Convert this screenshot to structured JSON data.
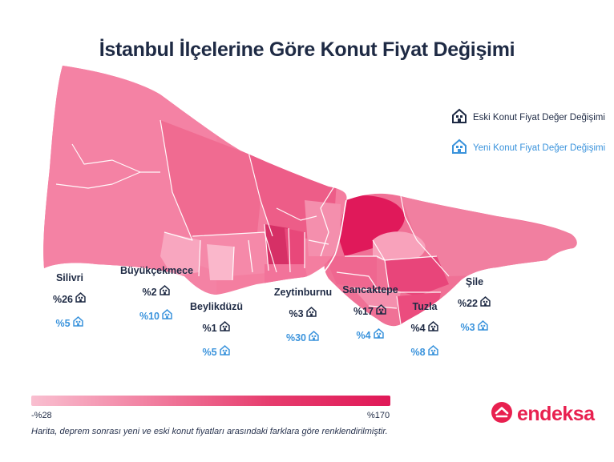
{
  "title": "İstanbul İlçelerine Göre Konut Fiyat Değişimi",
  "legend": {
    "old_label": "Eski Konut Fiyat Değer Değişimi",
    "new_label": "Yeni Konut Fiyat Değer Değişimi",
    "old_color": "#1e2a44",
    "new_color": "#3a93dc",
    "old_icon": "house-dark-icon",
    "new_icon": "house-blue-icon"
  },
  "districts": [
    {
      "name": "Silivri",
      "old": "%26",
      "new": "%5"
    },
    {
      "name": "Büyükçekmece",
      "old": "%2",
      "new": "%10"
    },
    {
      "name": "Beylikdüzü",
      "old": "%1",
      "new": "%5"
    },
    {
      "name": "Zeytinburnu",
      "old": "%3",
      "new": "%30"
    },
    {
      "name": "Sancaktepe",
      "old": "%17",
      "new": "%4"
    },
    {
      "name": "Tuzla",
      "old": "%4",
      "new": "%8"
    },
    {
      "name": "Şile",
      "old": "%22",
      "new": "%3"
    }
  ],
  "scale": {
    "min_label": "-%28",
    "max_label": "%170",
    "min_color": "#f9bfd0",
    "max_color": "#e01857"
  },
  "note": "Harita, deprem sonrası yeni ve eski konut fiyatları arasındaki farklara göre renklendirilmiştir.",
  "brand": {
    "name": "endeksa",
    "color": "#e8204f",
    "icon": "endeksa-logo-icon"
  }
}
